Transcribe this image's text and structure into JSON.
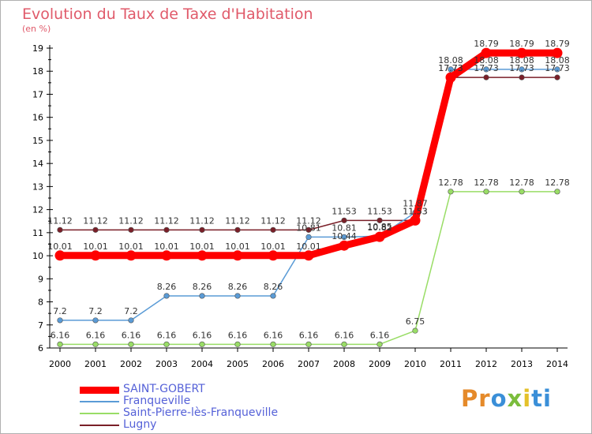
{
  "chart_data": {
    "type": "line",
    "title": "Evolution du Taux de Taxe d'Habitation",
    "unit_label": "(en %)",
    "x": [
      "2000",
      "2001",
      "2002",
      "2003",
      "2004",
      "2005",
      "2006",
      "2007",
      "2008",
      "2009",
      "2010",
      "2011",
      "2012",
      "2013",
      "2014"
    ],
    "ylim": [
      6,
      19
    ],
    "yticks": [
      6,
      7,
      8,
      9,
      10,
      11,
      12,
      13,
      14,
      15,
      16,
      17,
      18,
      19
    ],
    "grid": false,
    "legend_position": "bottom-left",
    "series": [
      {
        "name": "Lugny",
        "color": "#7a1f28",
        "values": [
          11.12,
          11.12,
          11.12,
          11.12,
          11.12,
          11.12,
          11.12,
          11.12,
          11.53,
          11.53,
          11.53,
          17.73,
          17.73,
          17.73,
          17.73
        ],
        "labels": [
          "11.12",
          "11.12",
          "11.12",
          "11.12",
          "11.12",
          "11.12",
          "11.12",
          "11.12",
          "11.53",
          "11.53",
          "11.53",
          "17.73",
          "17.73",
          "17.73",
          "17.73"
        ]
      },
      {
        "name": "Saint-Pierre-lès-Franqueville",
        "color": "#99dd66",
        "values": [
          6.16,
          6.16,
          6.16,
          6.16,
          6.16,
          6.16,
          6.16,
          6.16,
          6.16,
          6.16,
          6.75,
          12.78,
          12.78,
          12.78,
          12.78
        ],
        "labels": [
          "6.16",
          "6.16",
          "6.16",
          "6.16",
          "6.16",
          "6.16",
          "6.16",
          "6.16",
          "6.16",
          "6.16",
          "6.75",
          "12.78",
          "12.78",
          "12.78",
          "12.78"
        ]
      },
      {
        "name": "Franqueville",
        "color": "#5a9bd6",
        "values": [
          7.2,
          7.2,
          7.2,
          8.26,
          8.26,
          8.26,
          8.26,
          10.81,
          10.81,
          10.85,
          11.87,
          18.08,
          18.08,
          18.08,
          18.08
        ],
        "labels": [
          "7.2",
          "7.2",
          "7.2",
          "8.26",
          "8.26",
          "8.26",
          "8.26",
          "10.81",
          "10.81",
          "10.85",
          "11.87",
          "18.08",
          "18.08",
          "18.08",
          "18.08"
        ]
      },
      {
        "name": "SAINT-GOBERT",
        "color": "#ff0000",
        "values": [
          10.01,
          10.01,
          10.01,
          10.01,
          10.01,
          10.01,
          10.01,
          10.01,
          10.44,
          10.82,
          11.53,
          17.73,
          18.79,
          18.79,
          18.79
        ],
        "labels": [
          "10.01",
          "10.01",
          "10.01",
          "10.01",
          "10.01",
          "10.01",
          "10.01",
          "10.01",
          "10.44",
          "10.82",
          "11.53",
          "17.73",
          "18.79",
          "18.79",
          "18.79"
        ]
      }
    ],
    "legend_order": [
      "SAINT-GOBERT",
      "Franqueville",
      "Saint-Pierre-lès-Franqueville",
      "Lugny"
    ]
  },
  "logo": {
    "p1": "Pr",
    "p2": "o",
    "p3": "x",
    "p4": "i",
    "p5": "ti"
  }
}
